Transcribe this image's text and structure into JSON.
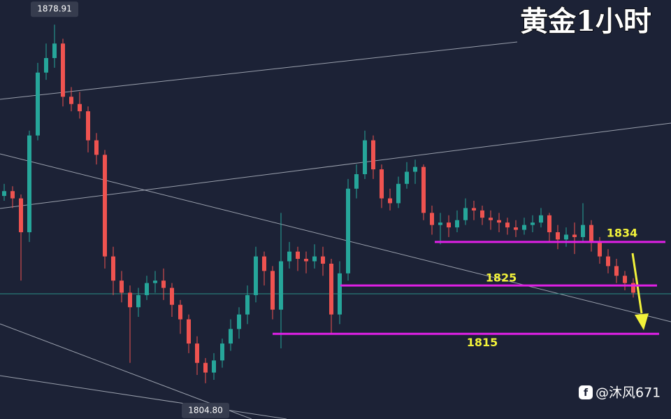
{
  "chart_data": {
    "type": "candlestick",
    "title": "黄金1小时",
    "watermark": "@沐风671",
    "ylim": [
      1797.4,
      1884
    ],
    "up_color": "#26a69a",
    "down_color": "#ef5350",
    "level_color": "#e020e6",
    "open": [
      1843.5,
      1844.5,
      1843,
      1836,
      1856,
      1869,
      1872,
      1875,
      1864,
      1862.5,
      1861,
      1855,
      1852,
      1831,
      1826,
      1823.5,
      1820.5,
      1823,
      1825.5,
      1826,
      1824.5,
      1821,
      1818,
      1813,
      1809,
      1807,
      1809.5,
      1813,
      1816,
      1819,
      1823,
      1831,
      1828,
      1820,
      1830,
      1832,
      1830.5,
      1830,
      1831,
      1829.5,
      1819,
      1827.5,
      1845,
      1848,
      1855,
      1849,
      1843,
      1842,
      1846,
      1848.5,
      1849.5,
      1840,
      1837.5,
      1838,
      1837,
      1838.5,
      1841,
      1840.5,
      1839,
      1838.5,
      1838,
      1837,
      1836.5,
      1837.5,
      1838,
      1839.5,
      1836,
      1834.5,
      1835.5,
      1835,
      1837.5,
      1834,
      1831,
      1829,
      1827,
      1825.5
    ],
    "high": [
      1846,
      1845.5,
      1843.8,
      1857,
      1871,
      1875,
      1878.91,
      1876,
      1866,
      1865,
      1862,
      1856.5,
      1853,
      1833,
      1828,
      1825,
      1824.5,
      1827,
      1828,
      1828.5,
      1825.5,
      1822,
      1819,
      1814.5,
      1810,
      1811,
      1814,
      1818,
      1820.5,
      1825,
      1833,
      1832,
      1829,
      1840,
      1834,
      1833,
      1832,
      1833.5,
      1833,
      1830.5,
      1830,
      1847,
      1850,
      1857,
      1856,
      1850,
      1845,
      1847.5,
      1850.5,
      1851,
      1850,
      1841.5,
      1840,
      1839.5,
      1840.5,
      1843,
      1842.5,
      1841.5,
      1840.5,
      1840,
      1839,
      1838.5,
      1839,
      1839.5,
      1841,
      1840,
      1837.5,
      1837,
      1838,
      1842,
      1838.5,
      1835,
      1832.5,
      1830.5,
      1828,
      1826.5
    ],
    "low": [
      1842.5,
      1841,
      1826,
      1834,
      1855,
      1867.5,
      1870,
      1862,
      1861,
      1859.5,
      1852.5,
      1850,
      1828.5,
      1823,
      1821.5,
      1809,
      1818.5,
      1822,
      1823.5,
      1822,
      1818.5,
      1815,
      1811,
      1806.5,
      1804.8,
      1805.5,
      1808,
      1811.5,
      1814,
      1817,
      1821.5,
      1825,
      1818,
      1812,
      1828.5,
      1828,
      1827.5,
      1828.5,
      1827,
      1815,
      1817,
      1826,
      1843,
      1847,
      1847,
      1841,
      1840.5,
      1841,
      1845,
      1846,
      1838.5,
      1835.5,
      1833.5,
      1835,
      1836,
      1837.5,
      1838.5,
      1837.5,
      1836.5,
      1836,
      1835.5,
      1835,
      1835.5,
      1836,
      1837,
      1834,
      1832.5,
      1833,
      1831.5,
      1834,
      1832,
      1829.5,
      1827.5,
      1825.5,
      1824,
      1822.5
    ],
    "close": [
      1844.5,
      1843,
      1836,
      1856,
      1869,
      1872,
      1875,
      1864,
      1862.5,
      1861,
      1855,
      1852,
      1831,
      1826,
      1823.5,
      1820.5,
      1823,
      1825.5,
      1826,
      1824.5,
      1821,
      1818,
      1813,
      1809,
      1807,
      1809.5,
      1813,
      1816,
      1819,
      1823,
      1831,
      1828,
      1820,
      1830,
      1832,
      1830.5,
      1830,
      1831,
      1829.5,
      1819,
      1827.5,
      1845,
      1848,
      1855,
      1849,
      1843,
      1842,
      1846,
      1848.5,
      1849.5,
      1840,
      1837.5,
      1838,
      1837,
      1838.5,
      1841,
      1840.5,
      1839,
      1838.5,
      1838,
      1837,
      1836.5,
      1837.5,
      1838,
      1839.5,
      1836,
      1834.5,
      1835.5,
      1835,
      1837.5,
      1834,
      1831,
      1829,
      1827,
      1825.5,
      1823.5
    ],
    "high_label": 1878.91,
    "low_label": {
      "value": 1804.8,
      "label": "1804.80"
    },
    "levels": [
      1834,
      1825,
      1815
    ]
  }
}
